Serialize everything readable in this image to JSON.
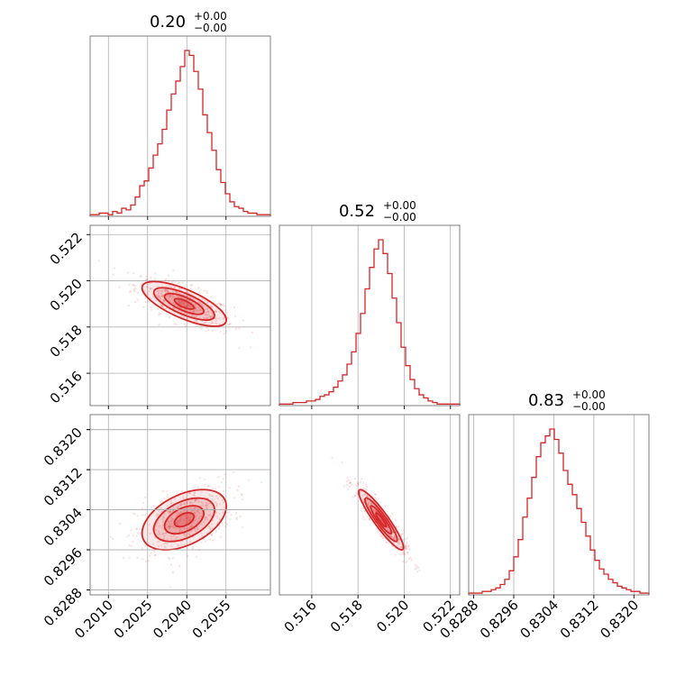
{
  "chart_data": {
    "type": "corner",
    "color": "#d62728",
    "grid": true,
    "parameters": [
      {
        "title_value": "0.20",
        "title_plus": "+0.00",
        "title_minus": "−0.00",
        "range": [
          0.2003,
          0.2072
        ],
        "mean": 0.2039,
        "std": 0.00075,
        "ticks": [
          0.201,
          0.2025,
          0.204,
          0.2055
        ],
        "tick_labels": [
          "0.2010",
          "0.2025",
          "0.2040",
          "0.2055"
        ]
      },
      {
        "title_value": "0.52",
        "title_plus": "+0.00",
        "title_minus": "−0.00",
        "range": [
          0.5146,
          0.5224
        ],
        "mean": 0.519,
        "std": 0.00045,
        "ticks": [
          0.516,
          0.518,
          0.52,
          0.522
        ],
        "tick_labels": [
          "0.516",
          "0.518",
          "0.520",
          "0.522"
        ]
      },
      {
        "title_value": "0.83",
        "title_plus": "+0.00",
        "title_minus": "−0.00",
        "range": [
          0.8287,
          0.8323
        ],
        "mean": 0.8302,
        "std": 0.00028,
        "ticks": [
          0.8288,
          0.8296,
          0.8304,
          0.8312,
          0.832
        ],
        "tick_labels": [
          "0.8288",
          "0.8296",
          "0.8304",
          "0.8312",
          "0.8320"
        ]
      }
    ],
    "pairs": [
      {
        "row": 1,
        "col": 0,
        "correlation": -0.72
      },
      {
        "row": 2,
        "col": 0,
        "correlation": 0.45
      },
      {
        "row": 2,
        "col": 1,
        "correlation": -0.92
      }
    ],
    "histograms": [
      {
        "param": 0,
        "bins": 40,
        "counts": [
          1,
          1,
          2,
          2,
          1,
          3,
          2,
          5,
          4,
          7,
          12,
          19,
          22,
          30,
          38,
          45,
          54,
          66,
          76,
          84,
          93,
          103,
          100,
          90,
          79,
          63,
          52,
          41,
          29,
          21,
          14,
          9,
          6,
          5,
          3,
          2,
          2,
          1,
          1,
          1
        ]
      },
      {
        "param": 1,
        "bins": 40,
        "counts": [
          1,
          1,
          1,
          2,
          2,
          2,
          3,
          3,
          4,
          6,
          7,
          9,
          12,
          16,
          20,
          27,
          35,
          47,
          60,
          76,
          90,
          102,
          108,
          99,
          86,
          70,
          54,
          38,
          26,
          17,
          11,
          7,
          5,
          3,
          2,
          1,
          1,
          1,
          1,
          1
        ]
      },
      {
        "param": 2,
        "bins": 40,
        "counts": [
          1,
          1,
          1,
          2,
          2,
          3,
          4,
          6,
          9,
          14,
          22,
          32,
          45,
          56,
          68,
          80,
          88,
          92,
          96,
          90,
          82,
          72,
          64,
          58,
          50,
          42,
          34,
          26,
          20,
          15,
          12,
          9,
          7,
          5,
          4,
          3,
          2,
          2,
          1,
          1
        ]
      }
    ]
  }
}
